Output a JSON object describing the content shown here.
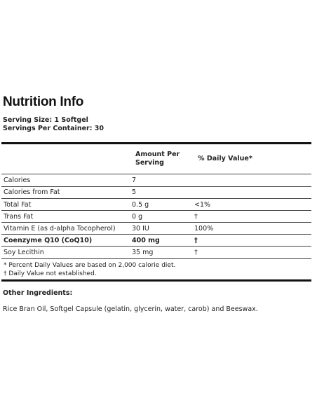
{
  "title": "Nutrition Info",
  "serving_size": "Serving Size: 1 Softgel",
  "servings_per_container": "Servings Per Container: 30",
  "headers": {
    "amount_line1": "Amount Per",
    "amount_line2": "Serving",
    "daily_value": "% Daily Value*"
  },
  "rows": [
    {
      "name": "Calories",
      "amount": "7",
      "dv": ""
    },
    {
      "name": "Calories from Fat",
      "amount": "5",
      "dv": ""
    },
    {
      "name": "Total Fat",
      "amount": "0.5 g",
      "dv": "<1%"
    },
    {
      "name": "Trans Fat",
      "amount": "0 g",
      "dv": "†"
    },
    {
      "name": "Vitamin E (as d-alpha Tocopherol)",
      "amount": "30 IU",
      "dv": "100%"
    },
    {
      "name": "Coenzyme Q10 (CoQ10)",
      "amount": "400 mg",
      "dv": "†"
    },
    {
      "name": "Soy Lecithin",
      "amount": "35 mg",
      "dv": "†"
    }
  ],
  "footnotes": [
    "* Percent Daily Values are based on 2,000 calorie diet.",
    "† Daily Value not established."
  ],
  "other_ingredients_title": "Other Ingredients:",
  "other_ingredients": "Rice Bran Oil, Softgel Capsule (gelatin, glycerin, water, carob) and Beeswax."
}
